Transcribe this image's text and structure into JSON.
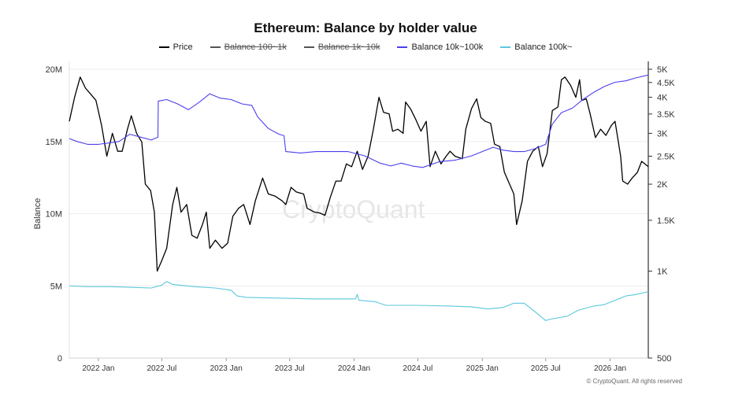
{
  "chart_data": {
    "type": "line",
    "title": "Ethereum: Balance by holder value",
    "ylabel": "Balance",
    "y_left": {
      "min": 0,
      "max": 20000000,
      "ticks": [
        0,
        5000000,
        10000000,
        15000000,
        20000000
      ],
      "tick_labels": [
        "0",
        "5M",
        "10M",
        "15M",
        "20M"
      ]
    },
    "y_right": {
      "scale": "log",
      "min": 500,
      "max": 5000,
      "ticks": [
        500,
        1000,
        1500,
        2000,
        2500,
        3000,
        3500,
        4000,
        4500,
        5000
      ],
      "tick_labels": [
        "500",
        "1K",
        "1.5K",
        "2K",
        "2.5K",
        "3K",
        "3.5K",
        "4K",
        "4.5K",
        "5K"
      ]
    },
    "x_range": [
      "2021-10-10",
      "2026-04-20"
    ],
    "x_ticks": [
      {
        "date": "2022-01-01",
        "label": "2022 Jan"
      },
      {
        "date": "2022-07-01",
        "label": "2022 Jul"
      },
      {
        "date": "2023-01-01",
        "label": "2023 Jan"
      },
      {
        "date": "2023-07-01",
        "label": "2023 Jul"
      },
      {
        "date": "2024-01-01",
        "label": "2024 Jan"
      },
      {
        "date": "2024-07-01",
        "label": "2024 Jul"
      },
      {
        "date": "2025-01-01",
        "label": "2025 Jan"
      },
      {
        "date": "2025-07-01",
        "label": "2025 Jul"
      },
      {
        "date": "2026-01-01",
        "label": "2026 Jan"
      }
    ],
    "legend": [
      {
        "name": "Price",
        "color": "#000000",
        "hidden": false
      },
      {
        "name": "Balance 100~1k",
        "color": "#555555",
        "hidden": true
      },
      {
        "name": "Balance 1k~10k",
        "color": "#555555",
        "hidden": true
      },
      {
        "name": "Balance 10k~100k",
        "color": "#4b3ff0",
        "hidden": false
      },
      {
        "name": "Balance 100k~",
        "color": "#5bc8dc",
        "hidden": false
      }
    ],
    "series": [
      {
        "name": "Price",
        "axis": "right",
        "color": "#000000",
        "points": [
          [
            "2021-10-10",
            3300
          ],
          [
            "2021-10-25",
            4000
          ],
          [
            "2021-11-10",
            4700
          ],
          [
            "2021-11-25",
            4300
          ],
          [
            "2021-12-10",
            4100
          ],
          [
            "2021-12-25",
            3900
          ],
          [
            "2022-01-10",
            3200
          ],
          [
            "2022-01-25",
            2500
          ],
          [
            "2022-02-10",
            3000
          ],
          [
            "2022-02-25",
            2600
          ],
          [
            "2022-03-10",
            2600
          ],
          [
            "2022-03-25",
            3100
          ],
          [
            "2022-04-05",
            3450
          ],
          [
            "2022-04-20",
            3000
          ],
          [
            "2022-05-05",
            2800
          ],
          [
            "2022-05-15",
            2000
          ],
          [
            "2022-05-30",
            1900
          ],
          [
            "2022-06-10",
            1600
          ],
          [
            "2022-06-18",
            1000
          ],
          [
            "2022-06-30",
            1080
          ],
          [
            "2022-07-15",
            1200
          ],
          [
            "2022-08-01",
            1700
          ],
          [
            "2022-08-13",
            1950
          ],
          [
            "2022-08-25",
            1600
          ],
          [
            "2022-09-10",
            1700
          ],
          [
            "2022-09-25",
            1330
          ],
          [
            "2022-10-10",
            1300
          ],
          [
            "2022-10-25",
            1450
          ],
          [
            "2022-11-05",
            1600
          ],
          [
            "2022-11-15",
            1200
          ],
          [
            "2022-12-01",
            1280
          ],
          [
            "2022-12-20",
            1200
          ],
          [
            "2023-01-05",
            1250
          ],
          [
            "2023-01-20",
            1550
          ],
          [
            "2023-02-05",
            1650
          ],
          [
            "2023-02-20",
            1700
          ],
          [
            "2023-03-10",
            1450
          ],
          [
            "2023-03-25",
            1750
          ],
          [
            "2023-04-15",
            2100
          ],
          [
            "2023-05-01",
            1850
          ],
          [
            "2023-05-20",
            1820
          ],
          [
            "2023-06-10",
            1750
          ],
          [
            "2023-06-20",
            1700
          ],
          [
            "2023-07-05",
            1950
          ],
          [
            "2023-07-20",
            1880
          ],
          [
            "2023-08-10",
            1850
          ],
          [
            "2023-08-20",
            1650
          ],
          [
            "2023-09-10",
            1600
          ],
          [
            "2023-09-25",
            1590
          ],
          [
            "2023-10-10",
            1560
          ],
          [
            "2023-10-25",
            1800
          ],
          [
            "2023-11-10",
            2050
          ],
          [
            "2023-11-25",
            2050
          ],
          [
            "2023-12-10",
            2350
          ],
          [
            "2023-12-25",
            2300
          ],
          [
            "2024-01-10",
            2600
          ],
          [
            "2024-01-25",
            2250
          ],
          [
            "2024-02-10",
            2500
          ],
          [
            "2024-02-25",
            3100
          ],
          [
            "2024-03-12",
            4000
          ],
          [
            "2024-03-25",
            3550
          ],
          [
            "2024-04-10",
            3500
          ],
          [
            "2024-04-20",
            3050
          ],
          [
            "2024-05-05",
            3100
          ],
          [
            "2024-05-20",
            3000
          ],
          [
            "2024-05-27",
            3850
          ],
          [
            "2024-06-10",
            3650
          ],
          [
            "2024-06-25",
            3350
          ],
          [
            "2024-07-10",
            3050
          ],
          [
            "2024-07-25",
            3300
          ],
          [
            "2024-08-05",
            2300
          ],
          [
            "2024-08-20",
            2600
          ],
          [
            "2024-09-05",
            2350
          ],
          [
            "2024-09-20",
            2500
          ],
          [
            "2024-10-01",
            2600
          ],
          [
            "2024-10-15",
            2500
          ],
          [
            "2024-11-05",
            2450
          ],
          [
            "2024-11-15",
            3100
          ],
          [
            "2024-12-01",
            3650
          ],
          [
            "2024-12-16",
            3950
          ],
          [
            "2024-12-28",
            3400
          ],
          [
            "2025-01-10",
            3300
          ],
          [
            "2025-01-25",
            3250
          ],
          [
            "2025-02-05",
            2750
          ],
          [
            "2025-02-20",
            2700
          ],
          [
            "2025-03-05",
            2200
          ],
          [
            "2025-03-20",
            2000
          ],
          [
            "2025-04-01",
            1850
          ],
          [
            "2025-04-09",
            1450
          ],
          [
            "2025-04-25",
            1750
          ],
          [
            "2025-05-10",
            2400
          ],
          [
            "2025-05-25",
            2600
          ],
          [
            "2025-06-10",
            2700
          ],
          [
            "2025-06-22",
            2300
          ],
          [
            "2025-07-05",
            2550
          ],
          [
            "2025-07-20",
            3600
          ],
          [
            "2025-08-05",
            3700
          ],
          [
            "2025-08-15",
            4600
          ],
          [
            "2025-08-25",
            4700
          ],
          [
            "2025-09-10",
            4400
          ],
          [
            "2025-09-25",
            4000
          ],
          [
            "2025-10-06",
            4600
          ],
          [
            "2025-10-12",
            3900
          ],
          [
            "2025-10-25",
            3950
          ],
          [
            "2025-11-05",
            3500
          ],
          [
            "2025-11-20",
            2900
          ],
          [
            "2025-12-05",
            3100
          ],
          [
            "2025-12-20",
            2950
          ],
          [
            "2026-01-05",
            3200
          ],
          [
            "2026-01-15",
            3300
          ],
          [
            "2026-01-31",
            2500
          ],
          [
            "2026-02-06",
            2050
          ],
          [
            "2026-02-20",
            2000
          ],
          [
            "2026-03-05",
            2100
          ],
          [
            "2026-03-20",
            2200
          ],
          [
            "2026-04-01",
            2400
          ],
          [
            "2026-04-10",
            2350
          ],
          [
            "2026-04-20",
            2300
          ]
        ]
      },
      {
        "name": "Balance 10k~100k",
        "axis": "left",
        "color": "#4b3ff0",
        "points": [
          [
            "2021-10-10",
            15200000
          ],
          [
            "2021-11-01",
            15000000
          ],
          [
            "2021-12-01",
            14800000
          ],
          [
            "2022-01-01",
            14800000
          ],
          [
            "2022-02-01",
            14900000
          ],
          [
            "2022-03-01",
            15000000
          ],
          [
            "2022-04-01",
            15500000
          ],
          [
            "2022-05-01",
            15300000
          ],
          [
            "2022-06-01",
            15100000
          ],
          [
            "2022-06-20",
            15300000
          ],
          [
            "2022-06-21",
            17800000
          ],
          [
            "2022-07-15",
            17900000
          ],
          [
            "2022-08-15",
            17600000
          ],
          [
            "2022-09-15",
            17200000
          ],
          [
            "2022-10-15",
            17700000
          ],
          [
            "2022-11-15",
            18300000
          ],
          [
            "2022-12-15",
            18000000
          ],
          [
            "2023-01-15",
            17900000
          ],
          [
            "2023-02-15",
            17600000
          ],
          [
            "2023-03-15",
            17500000
          ],
          [
            "2023-04-01",
            16700000
          ],
          [
            "2023-05-01",
            15900000
          ],
          [
            "2023-06-01",
            15500000
          ],
          [
            "2023-06-15",
            15400000
          ],
          [
            "2023-06-20",
            14300000
          ],
          [
            "2023-08-01",
            14200000
          ],
          [
            "2023-09-15",
            14300000
          ],
          [
            "2023-11-01",
            14300000
          ],
          [
            "2023-12-15",
            14300000
          ],
          [
            "2024-02-01",
            14000000
          ],
          [
            "2024-03-15",
            13500000
          ],
          [
            "2024-04-15",
            13300000
          ],
          [
            "2024-05-15",
            13500000
          ],
          [
            "2024-06-15",
            13300000
          ],
          [
            "2024-07-15",
            13200000
          ],
          [
            "2024-09-01",
            13600000
          ],
          [
            "2024-10-15",
            13700000
          ],
          [
            "2024-12-01",
            14000000
          ],
          [
            "2025-01-01",
            14300000
          ],
          [
            "2025-02-01",
            14600000
          ],
          [
            "2025-03-01",
            14400000
          ],
          [
            "2025-04-01",
            14300000
          ],
          [
            "2025-05-01",
            14300000
          ],
          [
            "2025-06-01",
            14500000
          ],
          [
            "2025-07-01",
            14800000
          ],
          [
            "2025-07-20",
            16200000
          ],
          [
            "2025-08-15",
            17000000
          ],
          [
            "2025-09-15",
            17300000
          ],
          [
            "2025-10-15",
            17900000
          ],
          [
            "2025-11-15",
            18400000
          ],
          [
            "2025-12-15",
            18800000
          ],
          [
            "2026-01-15",
            19100000
          ],
          [
            "2026-02-15",
            19200000
          ],
          [
            "2026-03-15",
            19400000
          ],
          [
            "2026-04-20",
            19600000
          ]
        ]
      },
      {
        "name": "Balance 100k~",
        "axis": "left",
        "color": "#5bc8dc",
        "points": [
          [
            "2021-10-10",
            5000000
          ],
          [
            "2021-12-01",
            4950000
          ],
          [
            "2022-02-01",
            4950000
          ],
          [
            "2022-04-01",
            4900000
          ],
          [
            "2022-06-01",
            4850000
          ],
          [
            "2022-07-01",
            5050000
          ],
          [
            "2022-07-15",
            5300000
          ],
          [
            "2022-08-01",
            5100000
          ],
          [
            "2022-10-01",
            4950000
          ],
          [
            "2022-12-01",
            4850000
          ],
          [
            "2023-01-15",
            4700000
          ],
          [
            "2023-02-01",
            4300000
          ],
          [
            "2023-03-01",
            4200000
          ],
          [
            "2023-06-01",
            4150000
          ],
          [
            "2023-09-01",
            4100000
          ],
          [
            "2023-12-01",
            4100000
          ],
          [
            "2024-01-05",
            4100000
          ],
          [
            "2024-01-10",
            4400000
          ],
          [
            "2024-01-15",
            4000000
          ],
          [
            "2024-03-01",
            3900000
          ],
          [
            "2024-04-01",
            3650000
          ],
          [
            "2024-07-01",
            3650000
          ],
          [
            "2024-10-01",
            3600000
          ],
          [
            "2024-12-01",
            3550000
          ],
          [
            "2025-01-15",
            3400000
          ],
          [
            "2025-03-01",
            3500000
          ],
          [
            "2025-04-01",
            3800000
          ],
          [
            "2025-05-01",
            3800000
          ],
          [
            "2025-06-01",
            3200000
          ],
          [
            "2025-07-01",
            2600000
          ],
          [
            "2025-07-15",
            2700000
          ],
          [
            "2025-09-01",
            2900000
          ],
          [
            "2025-10-01",
            3300000
          ],
          [
            "2025-11-15",
            3600000
          ],
          [
            "2025-12-15",
            3700000
          ],
          [
            "2026-01-15",
            4000000
          ],
          [
            "2026-02-15",
            4300000
          ],
          [
            "2026-03-15",
            4400000
          ],
          [
            "2026-04-20",
            4600000
          ]
        ]
      }
    ],
    "watermark": "CryptoQuant",
    "credit": "© CryptoQuant. All rights reserved"
  }
}
